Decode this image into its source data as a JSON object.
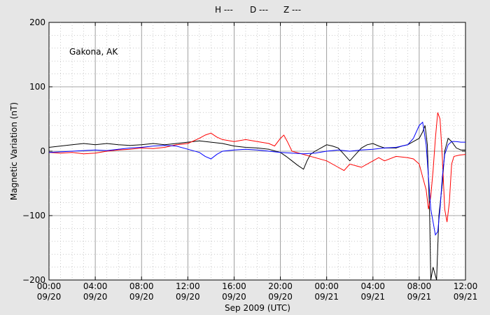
{
  "chart_data": {
    "type": "line",
    "title": "",
    "annotation": "Gakona, AK",
    "xlabel": "Sep 2009 (UTC)",
    "ylabel": "Magnetic Variation (nT)",
    "ylim": [
      -200,
      200
    ],
    "y_ticks": [
      {
        "value": 200,
        "label": "200"
      },
      {
        "value": 100,
        "label": "100"
      },
      {
        "value": 0,
        "label": "0"
      },
      {
        "value": -100,
        "label": "−100"
      },
      {
        "value": -200,
        "label": "−200"
      }
    ],
    "x_range_hours": [
      0,
      36
    ],
    "x_ticks": [
      {
        "hour": 0,
        "time": "00:00",
        "date": "09/20"
      },
      {
        "hour": 4,
        "time": "04:00",
        "date": "09/20"
      },
      {
        "hour": 8,
        "time": "08:00",
        "date": "09/20"
      },
      {
        "hour": 12,
        "time": "12:00",
        "date": "09/20"
      },
      {
        "hour": 16,
        "time": "16:00",
        "date": "09/20"
      },
      {
        "hour": 20,
        "time": "20:00",
        "date": "09/20"
      },
      {
        "hour": 24,
        "time": "00:00",
        "date": "09/21"
      },
      {
        "hour": 28,
        "time": "04:00",
        "date": "09/21"
      },
      {
        "hour": 32,
        "time": "08:00",
        "date": "09/21"
      },
      {
        "hour": 36,
        "time": "12:00",
        "date": "09/21"
      }
    ],
    "legend": {
      "placement": "top-center",
      "h_label": "H ---",
      "d_label": "D ---",
      "z_label": "Z ---"
    },
    "grid": true,
    "colors": {
      "H": "#000000",
      "D": "#ff0000",
      "Z": "#0000ff"
    },
    "series": [
      {
        "name": "H ---",
        "color": "#000000",
        "points": [
          [
            0,
            6
          ],
          [
            1,
            8
          ],
          [
            2,
            10
          ],
          [
            3,
            12
          ],
          [
            4,
            10
          ],
          [
            5,
            12
          ],
          [
            6,
            10
          ],
          [
            7,
            9
          ],
          [
            8,
            10
          ],
          [
            9,
            12
          ],
          [
            10,
            10
          ],
          [
            11,
            12
          ],
          [
            12,
            14
          ],
          [
            13,
            16
          ],
          [
            14,
            14
          ],
          [
            15,
            12
          ],
          [
            16,
            8
          ],
          [
            17,
            6
          ],
          [
            18,
            5
          ],
          [
            19,
            3
          ],
          [
            20,
            -2
          ],
          [
            20.5,
            -8
          ],
          [
            21,
            -15
          ],
          [
            21.5,
            -22
          ],
          [
            22,
            -28
          ],
          [
            22.3,
            -15
          ],
          [
            22.6,
            -5
          ],
          [
            23,
            0
          ],
          [
            23.5,
            5
          ],
          [
            24,
            10
          ],
          [
            24.5,
            8
          ],
          [
            25,
            5
          ],
          [
            25.5,
            -5
          ],
          [
            26,
            -15
          ],
          [
            26.5,
            -5
          ],
          [
            27,
            5
          ],
          [
            27.5,
            10
          ],
          [
            28,
            12
          ],
          [
            28.5,
            8
          ],
          [
            29,
            5
          ],
          [
            30,
            5
          ],
          [
            30.5,
            8
          ],
          [
            31,
            10
          ],
          [
            31.5,
            15
          ],
          [
            32,
            20
          ],
          [
            32.3,
            30
          ],
          [
            32.5,
            40
          ],
          [
            32.7,
            10
          ],
          [
            32.9,
            -100
          ],
          [
            33.0,
            -200
          ],
          [
            33.2,
            -180
          ],
          [
            33.5,
            -200
          ],
          [
            33.7,
            -100
          ],
          [
            34.0,
            -50
          ],
          [
            34.2,
            0
          ],
          [
            34.5,
            20
          ],
          [
            34.8,
            15
          ],
          [
            35.2,
            5
          ],
          [
            35.6,
            2
          ],
          [
            36,
            2
          ]
        ]
      },
      {
        "name": "D ---",
        "color": "#ff0000",
        "points": [
          [
            0,
            -2
          ],
          [
            1,
            -3
          ],
          [
            2,
            -2
          ],
          [
            3,
            -4
          ],
          [
            4,
            -3
          ],
          [
            5,
            0
          ],
          [
            6,
            2
          ],
          [
            7,
            3
          ],
          [
            8,
            5
          ],
          [
            9,
            4
          ],
          [
            10,
            6
          ],
          [
            11,
            10
          ],
          [
            12,
            12
          ],
          [
            13,
            20
          ],
          [
            13.5,
            25
          ],
          [
            14,
            28
          ],
          [
            14.5,
            22
          ],
          [
            15,
            18
          ],
          [
            16,
            15
          ],
          [
            17,
            18
          ],
          [
            18,
            15
          ],
          [
            19,
            12
          ],
          [
            19.5,
            8
          ],
          [
            20,
            20
          ],
          [
            20.3,
            25
          ],
          [
            20.6,
            15
          ],
          [
            21,
            0
          ],
          [
            22,
            -5
          ],
          [
            23,
            -10
          ],
          [
            24,
            -15
          ],
          [
            25,
            -25
          ],
          [
            25.5,
            -30
          ],
          [
            26,
            -20
          ],
          [
            27,
            -25
          ],
          [
            28,
            -15
          ],
          [
            28.5,
            -10
          ],
          [
            29,
            -15
          ],
          [
            30,
            -8
          ],
          [
            31,
            -10
          ],
          [
            31.5,
            -12
          ],
          [
            32,
            -20
          ],
          [
            32.3,
            -40
          ],
          [
            32.6,
            -60
          ],
          [
            32.8,
            -90
          ],
          [
            33.0,
            -70
          ],
          [
            33.2,
            -30
          ],
          [
            33.4,
            20
          ],
          [
            33.6,
            60
          ],
          [
            33.8,
            50
          ],
          [
            34.0,
            -10
          ],
          [
            34.2,
            -90
          ],
          [
            34.4,
            -110
          ],
          [
            34.6,
            -80
          ],
          [
            34.8,
            -20
          ],
          [
            35.0,
            -8
          ],
          [
            35.5,
            -6
          ],
          [
            36,
            -5
          ]
        ]
      },
      {
        "name": "Z ---",
        "color": "#0000ff",
        "points": [
          [
            0,
            -2
          ],
          [
            1,
            -1
          ],
          [
            2,
            0
          ],
          [
            3,
            1
          ],
          [
            4,
            2
          ],
          [
            5,
            1
          ],
          [
            6,
            3
          ],
          [
            7,
            5
          ],
          [
            8,
            6
          ],
          [
            9,
            8
          ],
          [
            10,
            9
          ],
          [
            11,
            8
          ],
          [
            12,
            3
          ],
          [
            13,
            -2
          ],
          [
            13.5,
            -8
          ],
          [
            14,
            -12
          ],
          [
            14.5,
            -5
          ],
          [
            15,
            0
          ],
          [
            16,
            2
          ],
          [
            17,
            3
          ],
          [
            18,
            2
          ],
          [
            19,
            0
          ],
          [
            20,
            -2
          ],
          [
            21,
            -3
          ],
          [
            22,
            -4
          ],
          [
            23,
            -3
          ],
          [
            24,
            0
          ],
          [
            25,
            2
          ],
          [
            26,
            0
          ],
          [
            27,
            2
          ],
          [
            28,
            3
          ],
          [
            29,
            5
          ],
          [
            30,
            6
          ],
          [
            31,
            10
          ],
          [
            31.5,
            20
          ],
          [
            32,
            40
          ],
          [
            32.3,
            45
          ],
          [
            32.6,
            10
          ],
          [
            32.8,
            -40
          ],
          [
            33.0,
            -90
          ],
          [
            33.2,
            -110
          ],
          [
            33.4,
            -130
          ],
          [
            33.6,
            -125
          ],
          [
            33.8,
            -90
          ],
          [
            34.0,
            -40
          ],
          [
            34.2,
            -5
          ],
          [
            34.5,
            10
          ],
          [
            34.8,
            15
          ],
          [
            35.2,
            15
          ],
          [
            35.6,
            14
          ],
          [
            36,
            14
          ]
        ]
      }
    ]
  }
}
